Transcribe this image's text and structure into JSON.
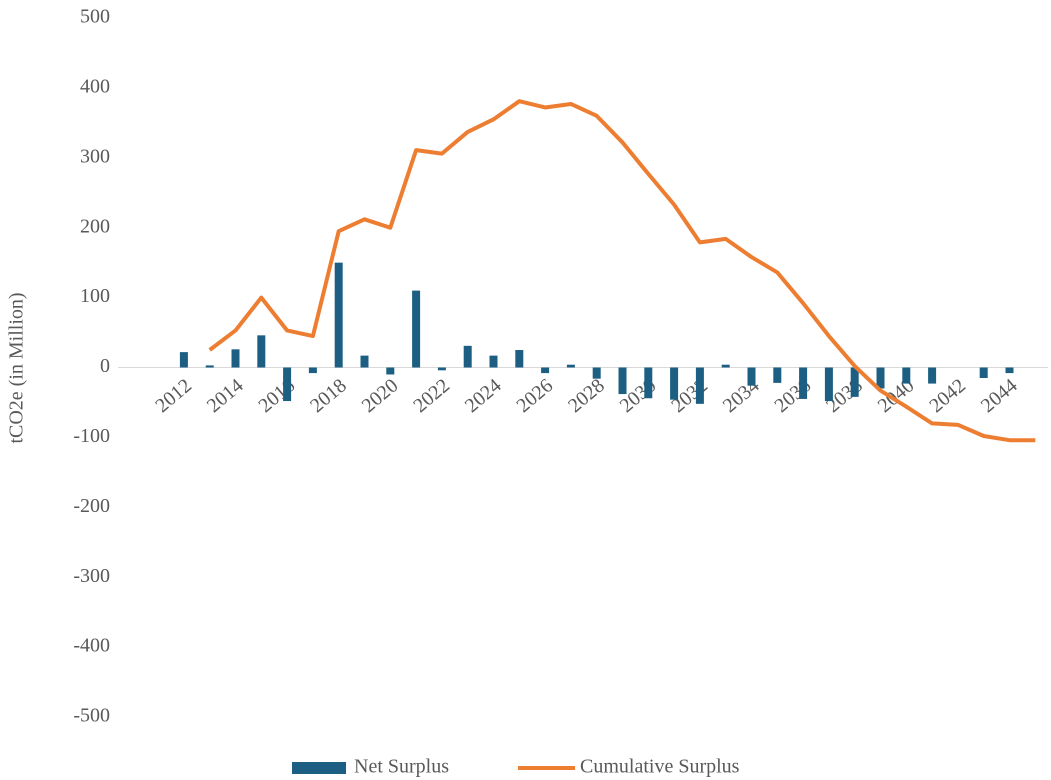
{
  "chart_data": {
    "type": "bar",
    "y_label": "tCO2e (in Million)",
    "categories": [
      "2012",
      null,
      "2014",
      null,
      "2016",
      null,
      "2018",
      null,
      "2020",
      null,
      "2022",
      null,
      "2024",
      null,
      "2026",
      null,
      "2028",
      null,
      "2030",
      null,
      "2032",
      null,
      "2034",
      null,
      "2036",
      null,
      "2038",
      null,
      "2040",
      null,
      "2042",
      null,
      "2044",
      null
    ],
    "series": [
      {
        "name": "Net Surplus",
        "type": "bar",
        "color": "#1c5f82",
        "values": [
          22,
          3,
          26,
          46,
          -48,
          -8,
          150,
          17,
          -10,
          110,
          -4,
          31,
          17,
          25,
          -8,
          4,
          -16,
          -38,
          -44,
          -46,
          -52,
          4,
          -26,
          -22,
          -45,
          -48,
          -42,
          -30,
          -23,
          -23,
          0,
          -15,
          -8,
          0
        ]
      },
      {
        "name": "Cumulative Surplus",
        "type": "line",
        "color": "#ed7d31",
        "values": [
          null,
          25,
          53,
          100,
          53,
          45,
          195,
          212,
          200,
          311,
          306,
          337,
          355,
          381,
          372,
          377,
          360,
          322,
          277,
          233,
          179,
          184,
          158,
          136,
          92,
          45,
          2,
          -33,
          -56,
          -80,
          -82,
          -98,
          -104,
          -104
        ]
      }
    ],
    "ylim": [
      -500,
      500
    ],
    "yticks": [
      -500,
      -400,
      -300,
      -200,
      -100,
      0,
      100,
      200,
      300,
      400,
      500
    ],
    "grid": false,
    "legend": "bottom"
  }
}
